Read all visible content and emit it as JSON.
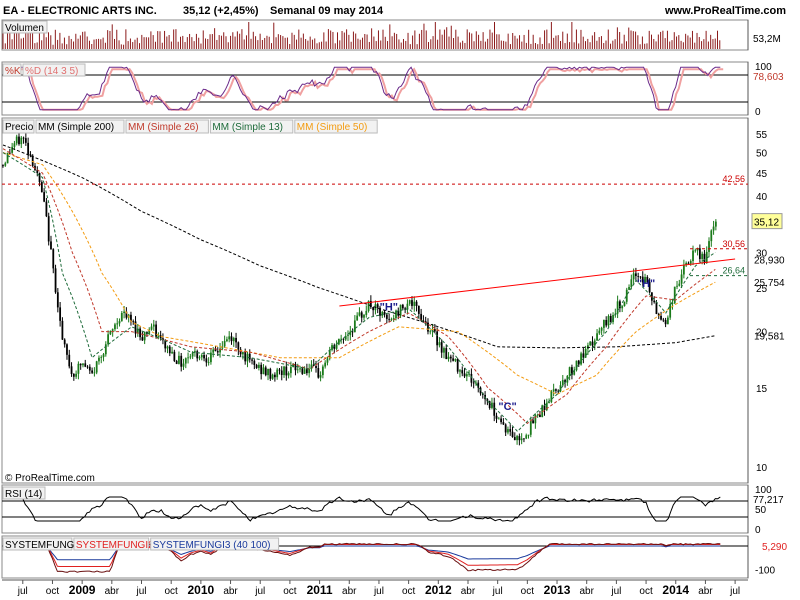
{
  "header": {
    "symbol_title": "EA - ELECTRONIC ARTS INC.",
    "price_change": "35,12 (+2,45%)",
    "period": "Semanal  09 may 2014",
    "site": "www.ProRealTime.com"
  },
  "copyright": "© ProRealTime.com",
  "colors": {
    "price_up": "#1a7a1a",
    "price_down": "#000000",
    "sma200": "#000000",
    "sma26": "#c0392b",
    "sma13": "#1e6b3a",
    "sma50": "#f39c12",
    "trendline": "#ff0000",
    "level_line": "#cc0000",
    "pattern_label": "#1a1a8c",
    "last_price_bg": "#ffff99"
  },
  "chart_data": [
    {
      "panel": "volume",
      "type": "bar",
      "title": "Volumen",
      "last_value_label": "53,2M"
    },
    {
      "panel": "stochastic",
      "type": "line",
      "legend": [
        "%K",
        "%D (14 3 5)"
      ],
      "yticks": [
        "100",
        "0"
      ],
      "last_value_label": "78,603",
      "reference_levels": [
        80,
        20
      ]
    },
    {
      "panel": "price",
      "type": "line",
      "title": "Precio",
      "legend": [
        "MM (Simple 200)",
        "MM (Simple 26)",
        "MM (Simple 13)",
        "MM (Simple 50)"
      ],
      "y_axis": {
        "scale": "log",
        "ylim": [
          10,
          57
        ],
        "ticks": [
          "55",
          "50",
          "45",
          "40",
          "35",
          "30",
          "25",
          "20",
          "15",
          "10"
        ]
      },
      "x_axis": {
        "ticks": [
          "jul",
          "oct",
          "2009",
          "abr",
          "jul",
          "oct",
          "2010",
          "abr",
          "jul",
          "oct",
          "2011",
          "abr",
          "jul",
          "oct",
          "2012",
          "abr",
          "jul",
          "oct",
          "2013",
          "abr",
          "jul",
          "oct",
          "2014",
          "abr",
          "jul"
        ],
        "bold": [
          "2009",
          "2010",
          "2011",
          "2012",
          "2013",
          "2014"
        ]
      },
      "price_path": [
        [
          "2008-05",
          47
        ],
        [
          "2008-06",
          52
        ],
        [
          "2008-07",
          54
        ],
        [
          "2008-08",
          48
        ],
        [
          "2008-09",
          40
        ],
        [
          "2008-10",
          28
        ],
        [
          "2008-11",
          19
        ],
        [
          "2008-12",
          16
        ],
        [
          "2009-01",
          17
        ],
        [
          "2009-02",
          16
        ],
        [
          "2009-03",
          18
        ],
        [
          "2009-04",
          20
        ],
        [
          "2009-05",
          22
        ],
        [
          "2009-06",
          21
        ],
        [
          "2009-07",
          19.5
        ],
        [
          "2009-08",
          20.5
        ],
        [
          "2009-09",
          19
        ],
        [
          "2009-10",
          18
        ],
        [
          "2009-11",
          17
        ],
        [
          "2009-12",
          18
        ],
        [
          "2010-02",
          17.5
        ],
        [
          "2010-04",
          19.5
        ],
        [
          "2010-06",
          17
        ],
        [
          "2010-08",
          16
        ],
        [
          "2010-10",
          16.5
        ],
        [
          "2010-12",
          16.5
        ],
        [
          "2011-01",
          16
        ],
        [
          "2011-02",
          18
        ],
        [
          "2011-04",
          20
        ],
        [
          "2011-06",
          23
        ],
        [
          "2011-08",
          21
        ],
        [
          "2011-10",
          23.5
        ],
        [
          "2011-12",
          20.5
        ],
        [
          "2012-02",
          17.5
        ],
        [
          "2012-04",
          16
        ],
        [
          "2012-06",
          14
        ],
        [
          "2012-08",
          12
        ],
        [
          "2012-09",
          11.5
        ],
        [
          "2012-10",
          12
        ],
        [
          "2012-12",
          14
        ],
        [
          "2013-02",
          16
        ],
        [
          "2013-04",
          18
        ],
        [
          "2013-06",
          21
        ],
        [
          "2013-08",
          24
        ],
        [
          "2013-09",
          27
        ],
        [
          "2013-10",
          26
        ],
        [
          "2013-11",
          22
        ],
        [
          "2013-12",
          21
        ],
        [
          "2014-01",
          25
        ],
        [
          "2014-02",
          28
        ],
        [
          "2014-03",
          30
        ],
        [
          "2014-04",
          29
        ],
        [
          "2014-05",
          35.12
        ]
      ],
      "sma200_path": [
        [
          "2008-05",
          52
        ],
        [
          "2009-01",
          44
        ],
        [
          "2009-07",
          37
        ],
        [
          "2010-01",
          32
        ],
        [
          "2010-07",
          28
        ],
        [
          "2011-01",
          25
        ],
        [
          "2011-07",
          22.5
        ],
        [
          "2012-01",
          20.5
        ],
        [
          "2012-07",
          18.5
        ],
        [
          "2013-01",
          18.4
        ],
        [
          "2013-07",
          18.5
        ],
        [
          "2014-01",
          18.9
        ],
        [
          "2014-05",
          19.581
        ]
      ],
      "sma50_path": [
        [
          "2008-05",
          50
        ],
        [
          "2008-09",
          47
        ],
        [
          "2008-12",
          37
        ],
        [
          "2009-03",
          27
        ],
        [
          "2009-06",
          21
        ],
        [
          "2009-09",
          19.5
        ],
        [
          "2010-03",
          18.5
        ],
        [
          "2010-09",
          17.5
        ],
        [
          "2011-03",
          17.5
        ],
        [
          "2011-09",
          20.5
        ],
        [
          "2012-03",
          20
        ],
        [
          "2012-09",
          16
        ],
        [
          "2013-01",
          14.5
        ],
        [
          "2013-05",
          16
        ],
        [
          "2013-09",
          20
        ],
        [
          "2014-01",
          23
        ],
        [
          "2014-05",
          25.754
        ]
      ],
      "sma26_path": [
        [
          "2008-05",
          51
        ],
        [
          "2008-09",
          45
        ],
        [
          "2008-12",
          30
        ],
        [
          "2009-03",
          20
        ],
        [
          "2009-06",
          20
        ],
        [
          "2009-12",
          18.5
        ],
        [
          "2010-06",
          18
        ],
        [
          "2010-12",
          16.5
        ],
        [
          "2011-06",
          20
        ],
        [
          "2011-10",
          22
        ],
        [
          "2012-02",
          19.5
        ],
        [
          "2012-06",
          15
        ],
        [
          "2012-10",
          12.5
        ],
        [
          "2013-02",
          14.5
        ],
        [
          "2013-06",
          18.5
        ],
        [
          "2013-10",
          24
        ],
        [
          "2014-01",
          23.5
        ],
        [
          "2014-05",
          27.5
        ]
      ],
      "sma13_path": [
        [
          "2008-05",
          50
        ],
        [
          "2008-09",
          44
        ],
        [
          "2008-11",
          27
        ],
        [
          "2009-02",
          17.5
        ],
        [
          "2009-06",
          20.5
        ],
        [
          "2009-12",
          18
        ],
        [
          "2010-06",
          17.5
        ],
        [
          "2010-12",
          16.5
        ],
        [
          "2011-06",
          21.5
        ],
        [
          "2011-10",
          22.5
        ],
        [
          "2012-02",
          18.5
        ],
        [
          "2012-06",
          14
        ],
        [
          "2012-09",
          12
        ],
        [
          "2013-01",
          14.5
        ],
        [
          "2013-06",
          20
        ],
        [
          "2013-09",
          26
        ],
        [
          "2013-12",
          22
        ],
        [
          "2014-03",
          28
        ],
        [
          "2014-05",
          30
        ]
      ],
      "trendline": {
        "start": [
          "2011-03",
          22.8
        ],
        "end": [
          "2014-07",
          29
        ]
      },
      "levels": [
        {
          "value": 42.56,
          "label": "42,56",
          "style": "dashed"
        },
        {
          "value": 30.56,
          "label": "30,56",
          "style": "dashed-short"
        },
        {
          "value": 26.64,
          "label": "26,64",
          "style": "dashed-short-green"
        }
      ],
      "annotations": [
        {
          "text": "\"H\"",
          "at": [
            "2011-08",
            22.3
          ]
        },
        {
          "text": "\"C\"",
          "at": [
            "2012-08",
            13.4
          ]
        },
        {
          "text": "\"H\"",
          "at": [
            "2013-10",
            25.1
          ]
        }
      ],
      "value_labels": [
        {
          "value": 35.12,
          "label": "35,12",
          "highlight": true
        },
        {
          "value": 28.93,
          "label": "28,930"
        },
        {
          "value": 25.754,
          "label": "25,754"
        },
        {
          "value": 19.581,
          "label": "19,581"
        }
      ]
    },
    {
      "panel": "rsi",
      "type": "line",
      "title": "RSI (14)",
      "yticks": [
        "100",
        "50",
        "0"
      ],
      "last_value_label": "77,217"
    },
    {
      "panel": "systemfungi",
      "type": "line",
      "legend": [
        "SYSTEMFUNGI",
        "SYSTEMFUNGI2",
        "SYSTEMFUNGI3 (40 100)"
      ],
      "yticks": [
        "0",
        "-100"
      ],
      "last_value_label": "5,290"
    }
  ]
}
